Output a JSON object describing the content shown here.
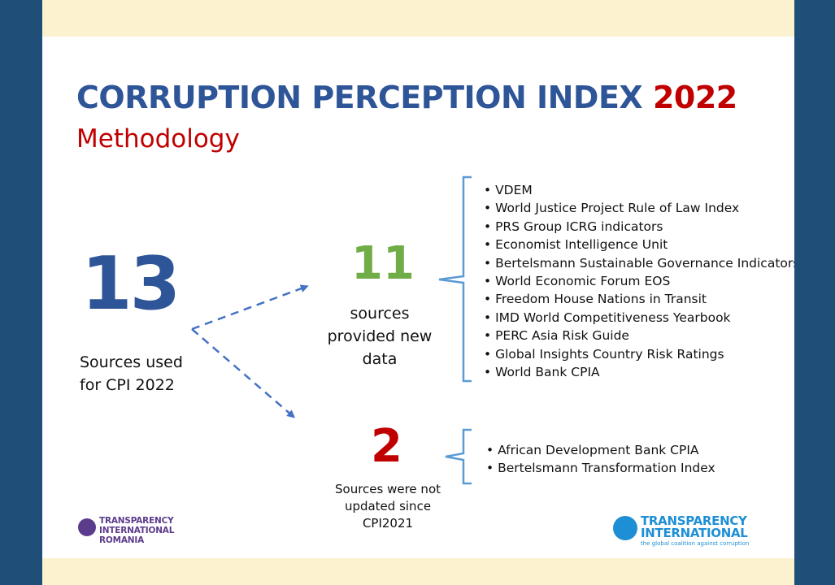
{
  "title": {
    "main": "CORRUPTION PERCEPTION INDEX",
    "year": "2022",
    "subtitle": "Methodology"
  },
  "total": {
    "number": "13",
    "label_line1": "Sources used",
    "label_line2": "for CPI 2022"
  },
  "new_data": {
    "number": "11",
    "label_line1": "sources",
    "label_line2": "provided new",
    "label_line3": "data",
    "sources": [
      "VDEM",
      "World Justice Project Rule of Law Index",
      "PRS Group ICRG indicators",
      "Economist Intelligence Unit",
      "Bertelsmann Sustainable Governance Indicators",
      "World Economic Forum EOS",
      "Freedom House Nations in Transit",
      "IMD World Competitiveness Yearbook",
      "PERC Asia Risk Guide",
      "Global Insights Country Risk Ratings",
      "World Bank CPIA"
    ]
  },
  "not_updated": {
    "number": "2",
    "label_line1": "Sources were not",
    "label_line2": "updated since",
    "label_line3": "CPI2021",
    "sources": [
      "African Development Bank CPIA",
      "Bertelsmann Transformation Index"
    ]
  },
  "logos": {
    "left": {
      "line1": "TRANSPARENCY",
      "line2": "INTERNATIONAL",
      "line3": "ROMANIA"
    },
    "right": {
      "line1": "TRANSPARENCY",
      "line2": "INTERNATIONAL",
      "tagline": "the global coalition against corruption"
    }
  },
  "colors": {
    "frame": "#1f4e79",
    "band": "#fdf2cf",
    "title_blue": "#2e5597",
    "accent_red": "#c00000",
    "green": "#70ad47",
    "arrow_blue": "#4472c4"
  }
}
